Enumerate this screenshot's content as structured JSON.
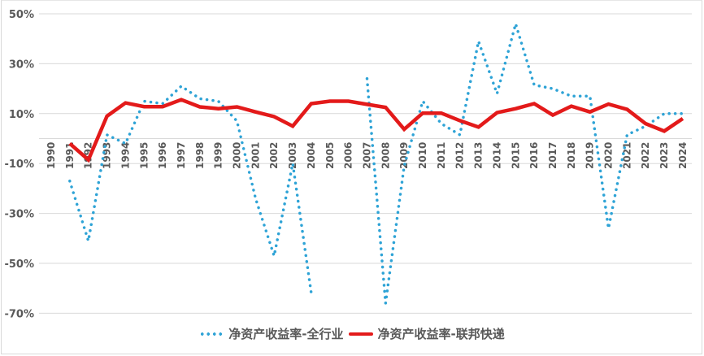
{
  "chart_data": {
    "type": "line",
    "title": "",
    "xlabel": "",
    "ylabel": "",
    "ylim": [
      -70,
      50
    ],
    "yticks": [
      50,
      30,
      10,
      -10,
      -30,
      -50,
      -70
    ],
    "ytick_labels": [
      "50%",
      "30%",
      "10%",
      "-10%",
      "-30%",
      "-50%",
      "-70%"
    ],
    "grid": true,
    "legend_position": "bottom",
    "categories": [
      "1990",
      "1991",
      "1992",
      "1993",
      "1994",
      "1995",
      "1996",
      "1997",
      "1998",
      "1999",
      "2000",
      "2001",
      "2002",
      "2003",
      "2004",
      "2005",
      "2006",
      "2007",
      "2008",
      "2009",
      "2010",
      "2011",
      "2012",
      "2013",
      "2014",
      "2015",
      "2016",
      "2017",
      "2018",
      "2019",
      "2020",
      "2021",
      "2022",
      "2023",
      "2024"
    ],
    "series": [
      {
        "name": "净资产收益率-全行业",
        "style": "dotted",
        "color": "#2ea3d6",
        "values": [
          null,
          -17,
          -41,
          1.5,
          -2,
          15,
          14,
          21,
          16,
          15,
          7,
          -24,
          -47,
          -10,
          -62,
          null,
          null,
          24,
          -66,
          -11,
          15,
          6,
          1.5,
          39,
          18,
          46,
          21.5,
          20,
          17,
          17,
          -36,
          1.5,
          5,
          10,
          10
        ]
      },
      {
        "name": "净资产收益率-联邦快递",
        "style": "solid",
        "color": "#e31a1a",
        "values": [
          null,
          -2,
          -8.5,
          9,
          14.3,
          12.8,
          12.8,
          15.6,
          12.7,
          12,
          12.7,
          10.7,
          8.8,
          5,
          14,
          15,
          15,
          13.7,
          12.5,
          3.7,
          10.2,
          10.2,
          7.2,
          4.6,
          10.4,
          12,
          14,
          9.4,
          13,
          10.7,
          13.8,
          11.7,
          6,
          3,
          8
        ]
      }
    ]
  },
  "legend": {
    "items": [
      {
        "label": "净资产收益率-全行业",
        "color": "#2ea3d6",
        "style": "dotted"
      },
      {
        "label": "净资产收益率-联邦快递",
        "color": "#e31a1a",
        "style": "solid"
      }
    ]
  }
}
